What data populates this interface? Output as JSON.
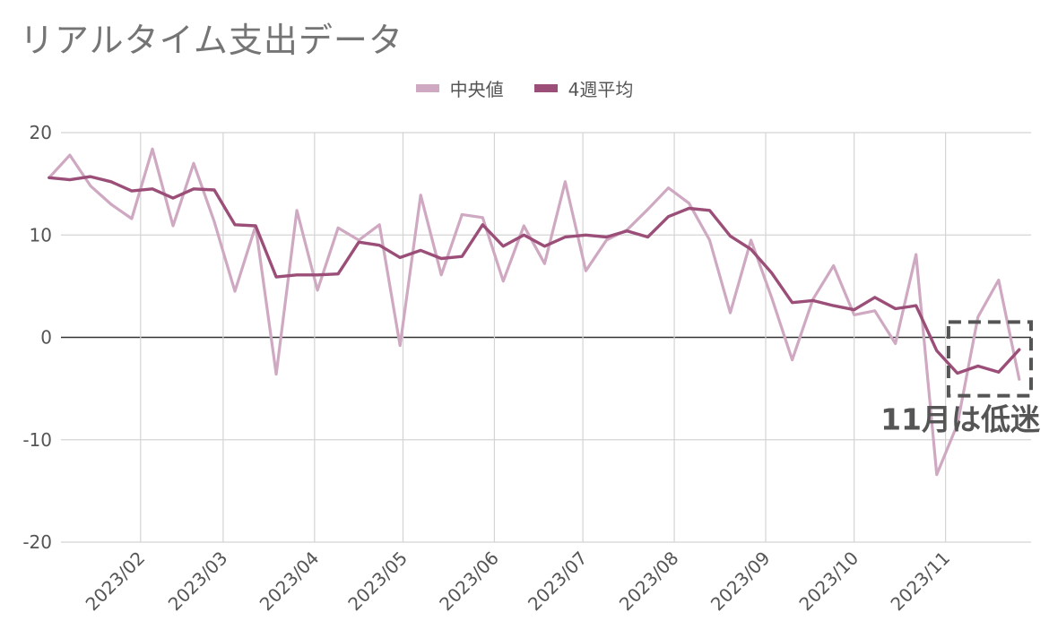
{
  "chart_data": {
    "type": "line",
    "title": "リアルタイム支出データ",
    "ylim": [
      -20,
      20
    ],
    "yticks": [
      "20",
      "10",
      "0",
      "-10",
      "-20"
    ],
    "ytick_values": [
      20,
      10,
      0,
      -10,
      -20
    ],
    "x_range": [
      "2023-01-05",
      "2023-11-30"
    ],
    "month_ticks": [
      {
        "date": "2023-02-01",
        "label": "2023/02"
      },
      {
        "date": "2023-03-01",
        "label": "2023/03"
      },
      {
        "date": "2023-04-01",
        "label": "2023/04"
      },
      {
        "date": "2023-05-01",
        "label": "2023/05"
      },
      {
        "date": "2023-06-01",
        "label": "2023/06"
      },
      {
        "date": "2023-07-01",
        "label": "2023/07"
      },
      {
        "date": "2023-08-01",
        "label": "2023/08"
      },
      {
        "date": "2023-09-01",
        "label": "2023/09"
      },
      {
        "date": "2023-10-01",
        "label": "2023/10"
      },
      {
        "date": "2023-11-01",
        "label": "2023/11"
      }
    ],
    "grid": true,
    "legend_position": "top",
    "series": [
      {
        "name": "中央値",
        "color": "#cfa8c1",
        "points": [
          [
            "2023-01-01",
            15.6
          ],
          [
            "2023-01-08",
            17.8
          ],
          [
            "2023-01-15",
            14.8
          ],
          [
            "2023-01-22",
            13.0
          ],
          [
            "2023-01-29",
            11.6
          ],
          [
            "2023-02-05",
            18.4
          ],
          [
            "2023-02-12",
            10.9
          ],
          [
            "2023-02-19",
            17.0
          ],
          [
            "2023-02-26",
            11.3
          ],
          [
            "2023-03-05",
            4.5
          ],
          [
            "2023-03-12",
            10.9
          ],
          [
            "2023-03-19",
            -3.6
          ],
          [
            "2023-03-26",
            12.4
          ],
          [
            "2023-04-02",
            4.6
          ],
          [
            "2023-04-09",
            10.7
          ],
          [
            "2023-04-16",
            9.5
          ],
          [
            "2023-04-23",
            11.0
          ],
          [
            "2023-04-30",
            -0.8
          ],
          [
            "2023-05-07",
            13.9
          ],
          [
            "2023-05-14",
            6.1
          ],
          [
            "2023-05-21",
            12.0
          ],
          [
            "2023-05-28",
            11.7
          ],
          [
            "2023-06-04",
            5.5
          ],
          [
            "2023-06-11",
            10.9
          ],
          [
            "2023-06-18",
            7.2
          ],
          [
            "2023-06-25",
            15.2
          ],
          [
            "2023-07-02",
            6.5
          ],
          [
            "2023-07-09",
            9.5
          ],
          [
            "2023-07-16",
            10.5
          ],
          [
            "2023-07-23",
            12.5
          ],
          [
            "2023-07-30",
            14.6
          ],
          [
            "2023-08-06",
            13.1
          ],
          [
            "2023-08-13",
            9.5
          ],
          [
            "2023-08-20",
            2.4
          ],
          [
            "2023-08-27",
            9.5
          ],
          [
            "2023-09-03",
            3.9
          ],
          [
            "2023-09-10",
            -2.2
          ],
          [
            "2023-09-17",
            3.7
          ],
          [
            "2023-09-24",
            7.0
          ],
          [
            "2023-10-01",
            2.2
          ],
          [
            "2023-10-08",
            2.6
          ],
          [
            "2023-10-15",
            -0.6
          ],
          [
            "2023-10-22",
            8.1
          ],
          [
            "2023-10-29",
            -13.4
          ],
          [
            "2023-11-05",
            -8.5
          ],
          [
            "2023-11-12",
            2.0
          ],
          [
            "2023-11-19",
            5.6
          ],
          [
            "2023-11-26",
            -4.1
          ]
        ]
      },
      {
        "name": "4週平均",
        "color": "#9b4f78",
        "points": [
          [
            "2023-01-01",
            15.6
          ],
          [
            "2023-01-08",
            15.4
          ],
          [
            "2023-01-15",
            15.7
          ],
          [
            "2023-01-22",
            15.2
          ],
          [
            "2023-01-29",
            14.3
          ],
          [
            "2023-02-05",
            14.5
          ],
          [
            "2023-02-12",
            13.6
          ],
          [
            "2023-02-19",
            14.5
          ],
          [
            "2023-02-26",
            14.4
          ],
          [
            "2023-03-05",
            11.0
          ],
          [
            "2023-03-12",
            10.9
          ],
          [
            "2023-03-19",
            5.9
          ],
          [
            "2023-03-26",
            6.1
          ],
          [
            "2023-04-02",
            6.1
          ],
          [
            "2023-04-09",
            6.2
          ],
          [
            "2023-04-16",
            9.3
          ],
          [
            "2023-04-23",
            9.0
          ],
          [
            "2023-04-30",
            7.8
          ],
          [
            "2023-05-07",
            8.5
          ],
          [
            "2023-05-14",
            7.7
          ],
          [
            "2023-05-21",
            7.9
          ],
          [
            "2023-05-28",
            11.0
          ],
          [
            "2023-06-04",
            8.9
          ],
          [
            "2023-06-11",
            10.0
          ],
          [
            "2023-06-18",
            8.9
          ],
          [
            "2023-06-25",
            9.8
          ],
          [
            "2023-07-02",
            10.0
          ],
          [
            "2023-07-09",
            9.8
          ],
          [
            "2023-07-16",
            10.4
          ],
          [
            "2023-07-23",
            9.8
          ],
          [
            "2023-07-30",
            11.8
          ],
          [
            "2023-08-06",
            12.6
          ],
          [
            "2023-08-13",
            12.4
          ],
          [
            "2023-08-20",
            9.9
          ],
          [
            "2023-08-27",
            8.6
          ],
          [
            "2023-09-03",
            6.3
          ],
          [
            "2023-09-10",
            3.4
          ],
          [
            "2023-09-17",
            3.6
          ],
          [
            "2023-09-24",
            3.1
          ],
          [
            "2023-10-01",
            2.7
          ],
          [
            "2023-10-08",
            3.9
          ],
          [
            "2023-10-15",
            2.8
          ],
          [
            "2023-10-22",
            3.1
          ],
          [
            "2023-10-29",
            -1.3
          ],
          [
            "2023-11-05",
            -3.5
          ],
          [
            "2023-11-12",
            -2.8
          ],
          [
            "2023-11-19",
            -3.4
          ],
          [
            "2023-11-26",
            -1.2
          ]
        ]
      }
    ],
    "annotations": [
      {
        "text": "11月は低迷",
        "box_x": [
          "2023-11-02",
          "2023-11-30"
        ],
        "box_y": [
          -5.7,
          1.5
        ]
      }
    ]
  }
}
